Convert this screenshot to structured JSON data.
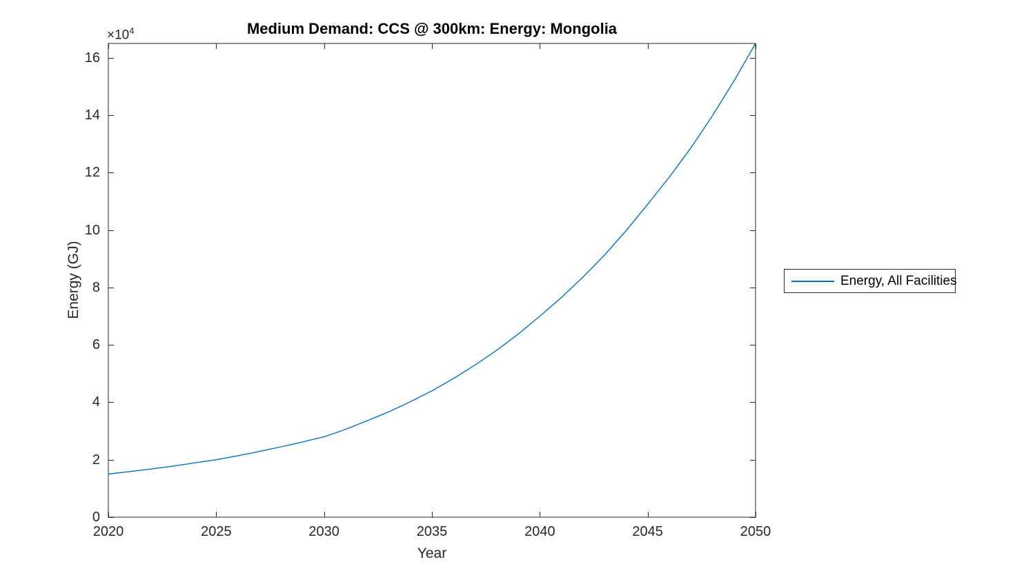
{
  "figure": {
    "y_axis_exponent_base": "×10",
    "y_axis_exponent": "4"
  },
  "chart_data": {
    "type": "line",
    "title": "Medium Demand: CCS @ 300km: Energy: Mongolia",
    "xlabel": "Year",
    "ylabel": "Energy (GJ)",
    "y_values_unit": "×10^4 GJ",
    "xlim": [
      2020,
      2050
    ],
    "ylim": [
      0,
      16.5
    ],
    "xticks": [
      2020,
      2025,
      2030,
      2035,
      2040,
      2045,
      2050
    ],
    "yticks": [
      0,
      2,
      4,
      6,
      8,
      10,
      12,
      14,
      16
    ],
    "grid": false,
    "legend_position": "right-outside",
    "line_color": "#0072BD",
    "axis_color": "#262626",
    "series": [
      {
        "name": "Energy, All Facilities",
        "x": [
          2020,
          2021,
          2022,
          2023,
          2024,
          2025,
          2026,
          2027,
          2028,
          2029,
          2030,
          2031,
          2032,
          2033,
          2034,
          2035,
          2036,
          2037,
          2038,
          2039,
          2040,
          2041,
          2042,
          2043,
          2044,
          2045,
          2046,
          2047,
          2048,
          2049,
          2050
        ],
        "y": [
          1.5,
          1.59,
          1.68,
          1.78,
          1.89,
          2.0,
          2.14,
          2.29,
          2.45,
          2.62,
          2.8,
          3.06,
          3.36,
          3.67,
          4.02,
          4.4,
          4.83,
          5.3,
          5.81,
          6.38,
          7.0,
          7.65,
          8.36,
          9.13,
          9.98,
          10.9,
          11.84,
          12.86,
          13.98,
          15.19,
          16.5
        ]
      }
    ]
  }
}
